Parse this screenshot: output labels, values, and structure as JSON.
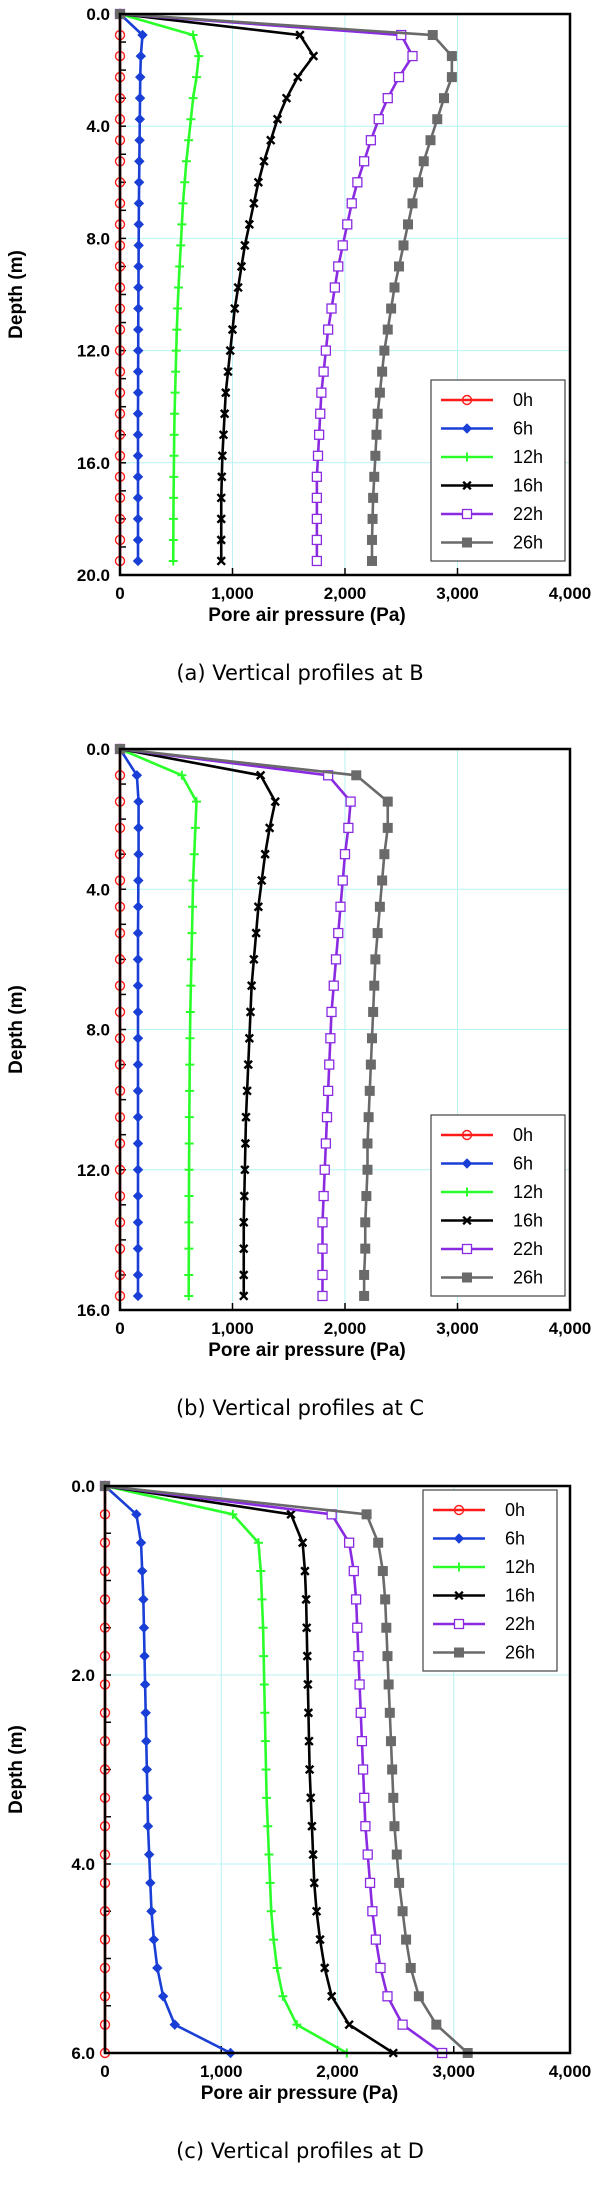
{
  "series_styles": [
    {
      "name": "0h",
      "color": "#ff1a1a",
      "marker": "circle"
    },
    {
      "name": "6h",
      "color": "#1a3fd6",
      "marker": "diamond"
    },
    {
      "name": "12h",
      "color": "#2bff2b",
      "marker": "plus"
    },
    {
      "name": "16h",
      "color": "#000000",
      "marker": "cross"
    },
    {
      "name": "22h",
      "color": "#8a2be2",
      "marker": "square-open"
    },
    {
      "name": "26h",
      "color": "#6a6a6a",
      "marker": "square-filled"
    }
  ],
  "chart_data": [
    {
      "type": "line",
      "caption": "(a) Vertical profiles at B",
      "xlabel": "Pore air pressure (Pa)",
      "ylabel": "Depth (m)",
      "xlim": [
        0,
        4000
      ],
      "ylim": [
        0,
        20
      ],
      "x_ticks": [
        "0",
        "1,000",
        "2,000",
        "3,000",
        "4,000"
      ],
      "y_ticks": [
        "0.0",
        "4.0",
        "8.0",
        "12.0",
        "16.0",
        "20.0"
      ],
      "y_inverted": true,
      "grid": true,
      "legend_position": "bottom-right",
      "depths": [
        0,
        0.75,
        1.5,
        2.25,
        3,
        3.75,
        4.5,
        5.25,
        6,
        6.75,
        7.5,
        8.25,
        9,
        9.75,
        10.5,
        11.25,
        12,
        12.75,
        13.5,
        14.25,
        15,
        15.75,
        16.5,
        17.25,
        18,
        18.75,
        19.5
      ],
      "series": [
        {
          "name": "0h",
          "values": [
            0,
            0,
            0,
            0,
            0,
            0,
            0,
            0,
            0,
            0,
            0,
            0,
            0,
            0,
            0,
            0,
            0,
            0,
            0,
            0,
            0,
            0,
            0,
            0,
            0,
            0,
            0
          ]
        },
        {
          "name": "6h",
          "values": [
            0,
            200,
            185,
            180,
            178,
            176,
            174,
            172,
            170,
            168,
            167,
            166,
            165,
            164,
            163,
            162,
            162,
            161,
            161,
            160,
            160,
            160,
            160,
            160,
            160,
            160,
            160
          ]
        },
        {
          "name": "12h",
          "values": [
            0,
            650,
            700,
            680,
            650,
            630,
            610,
            590,
            575,
            560,
            550,
            540,
            530,
            520,
            512,
            505,
            500,
            495,
            490,
            485,
            482,
            480,
            478,
            476,
            475,
            474,
            473
          ]
        },
        {
          "name": "16h",
          "values": [
            0,
            1600,
            1720,
            1580,
            1480,
            1400,
            1340,
            1280,
            1230,
            1190,
            1150,
            1110,
            1080,
            1050,
            1020,
            1000,
            980,
            960,
            940,
            930,
            920,
            910,
            905,
            900,
            900,
            900,
            900
          ]
        },
        {
          "name": "22h",
          "values": [
            0,
            2500,
            2600,
            2480,
            2380,
            2300,
            2230,
            2170,
            2110,
            2060,
            2020,
            1980,
            1940,
            1910,
            1880,
            1850,
            1830,
            1810,
            1790,
            1780,
            1770,
            1760,
            1750,
            1750,
            1750,
            1750,
            1750
          ]
        },
        {
          "name": "26h",
          "values": [
            0,
            2780,
            2950,
            2950,
            2880,
            2820,
            2760,
            2700,
            2650,
            2600,
            2560,
            2520,
            2480,
            2440,
            2410,
            2380,
            2350,
            2330,
            2310,
            2290,
            2280,
            2270,
            2260,
            2250,
            2245,
            2240,
            2240
          ]
        }
      ]
    },
    {
      "type": "line",
      "caption": "(b) Vertical profiles at C",
      "xlabel": "Pore air pressure (Pa)",
      "ylabel": "Depth (m)",
      "xlim": [
        0,
        4000
      ],
      "ylim": [
        0,
        16
      ],
      "x_ticks": [
        "0",
        "1,000",
        "2,000",
        "3,000",
        "4,000"
      ],
      "y_ticks": [
        "0.0",
        "4.0",
        "8.0",
        "12.0",
        "16.0"
      ],
      "y_inverted": true,
      "grid": true,
      "legend_position": "bottom-right",
      "depths": [
        0,
        0.75,
        1.5,
        2.25,
        3,
        3.75,
        4.5,
        5.25,
        6,
        6.75,
        7.5,
        8.25,
        9,
        9.75,
        10.5,
        11.25,
        12,
        12.75,
        13.5,
        14.25,
        15,
        15.6
      ],
      "series": [
        {
          "name": "0h",
          "values": [
            0,
            0,
            0,
            0,
            0,
            0,
            0,
            0,
            0,
            0,
            0,
            0,
            0,
            0,
            0,
            0,
            0,
            0,
            0,
            0,
            0,
            0
          ]
        },
        {
          "name": "6h",
          "values": [
            0,
            150,
            165,
            165,
            165,
            163,
            162,
            160,
            160,
            160,
            160,
            160,
            160,
            160,
            160,
            160,
            160,
            160,
            160,
            160,
            160,
            160
          ]
        },
        {
          "name": "12h",
          "values": [
            0,
            550,
            680,
            670,
            660,
            650,
            645,
            640,
            635,
            630,
            625,
            622,
            620,
            618,
            616,
            615,
            614,
            613,
            612,
            612,
            611,
            611
          ]
        },
        {
          "name": "16h",
          "values": [
            0,
            1250,
            1380,
            1330,
            1290,
            1260,
            1230,
            1210,
            1190,
            1170,
            1160,
            1150,
            1140,
            1130,
            1120,
            1115,
            1110,
            1105,
            1100,
            1100,
            1100,
            1100
          ]
        },
        {
          "name": "22h",
          "values": [
            0,
            1850,
            2050,
            2030,
            2000,
            1980,
            1960,
            1940,
            1920,
            1900,
            1880,
            1870,
            1860,
            1850,
            1840,
            1830,
            1820,
            1810,
            1800,
            1800,
            1800,
            1800
          ]
        },
        {
          "name": "26h",
          "values": [
            0,
            2100,
            2380,
            2380,
            2350,
            2330,
            2310,
            2290,
            2270,
            2260,
            2250,
            2240,
            2230,
            2220,
            2210,
            2200,
            2200,
            2190,
            2180,
            2180,
            2170,
            2170
          ]
        }
      ]
    },
    {
      "type": "line",
      "caption": "(c) Vertical profiles at D",
      "xlabel": "Pore air pressure (Pa)",
      "ylabel": "Depth (m)",
      "xlim": [
        0,
        4000
      ],
      "ylim": [
        0,
        6
      ],
      "x_ticks": [
        "0",
        "1,000",
        "2,000",
        "3,000",
        "4,000"
      ],
      "y_ticks": [
        "0.0",
        "2.0",
        "4.0",
        "6.0"
      ],
      "y_inverted": true,
      "grid": true,
      "legend_position": "top-right",
      "depths": [
        0,
        0.3,
        0.6,
        0.9,
        1.2,
        1.5,
        1.8,
        2.1,
        2.4,
        2.7,
        3,
        3.3,
        3.6,
        3.9,
        4.2,
        4.5,
        4.8,
        5.1,
        5.4,
        5.7,
        6
      ],
      "series": [
        {
          "name": "0h",
          "values": [
            0,
            0,
            0,
            0,
            0,
            0,
            0,
            0,
            0,
            0,
            0,
            0,
            0,
            0,
            0,
            0,
            0,
            0,
            0,
            0,
            0
          ]
        },
        {
          "name": "6h",
          "values": [
            0,
            270,
            310,
            320,
            330,
            335,
            340,
            345,
            350,
            355,
            360,
            365,
            370,
            380,
            390,
            400,
            420,
            450,
            500,
            600,
            1080
          ]
        },
        {
          "name": "12h",
          "values": [
            0,
            1100,
            1320,
            1340,
            1350,
            1360,
            1365,
            1370,
            1375,
            1380,
            1385,
            1390,
            1400,
            1410,
            1420,
            1430,
            1450,
            1480,
            1530,
            1650,
            2080
          ]
        },
        {
          "name": "16h",
          "values": [
            0,
            1600,
            1700,
            1720,
            1730,
            1735,
            1740,
            1745,
            1750,
            1755,
            1760,
            1770,
            1780,
            1790,
            1800,
            1820,
            1850,
            1890,
            1950,
            2100,
            2480
          ]
        },
        {
          "name": "22h",
          "values": [
            0,
            1950,
            2100,
            2140,
            2160,
            2170,
            2180,
            2190,
            2200,
            2210,
            2220,
            2230,
            2240,
            2260,
            2280,
            2300,
            2330,
            2370,
            2430,
            2560,
            2900
          ]
        },
        {
          "name": "26h",
          "values": [
            0,
            2250,
            2350,
            2390,
            2410,
            2420,
            2430,
            2440,
            2450,
            2460,
            2470,
            2480,
            2490,
            2510,
            2530,
            2560,
            2590,
            2630,
            2700,
            2850,
            3120
          ]
        }
      ]
    }
  ]
}
